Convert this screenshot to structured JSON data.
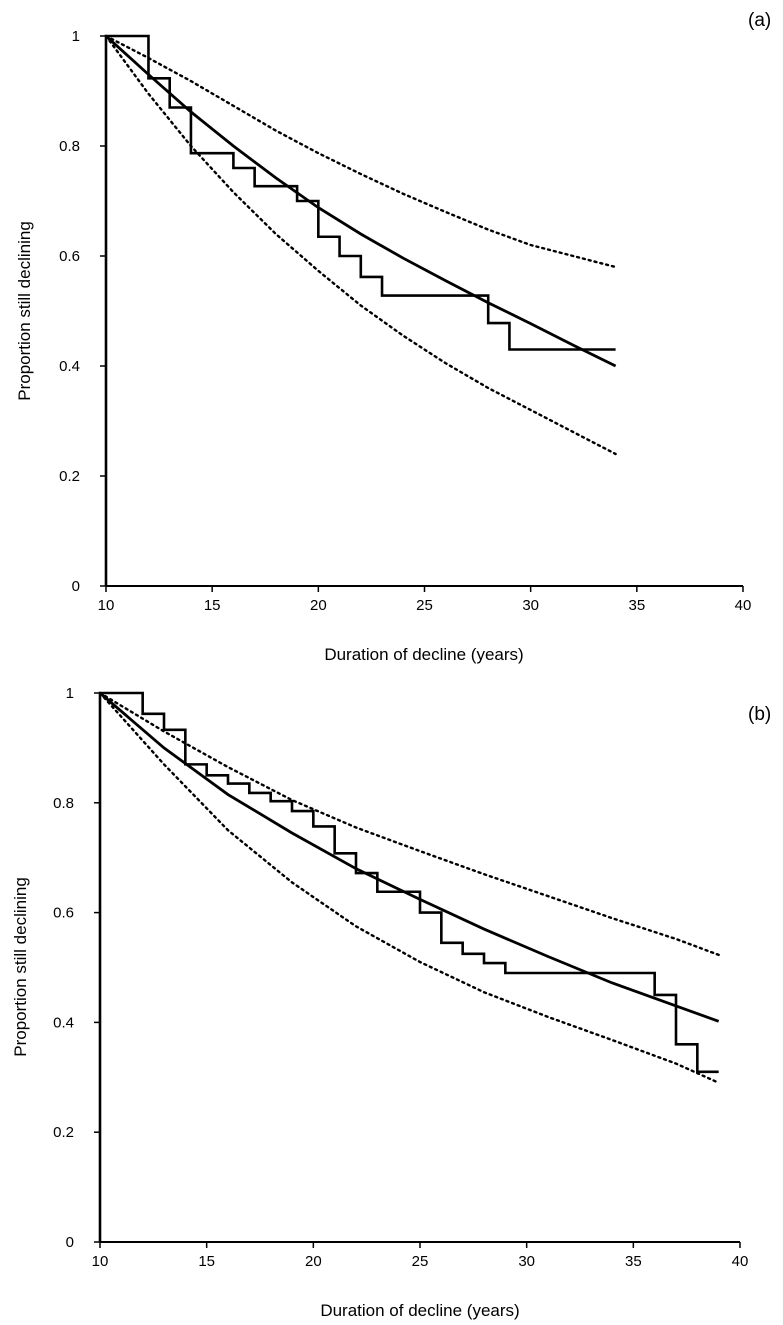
{
  "chart_data": [
    {
      "type": "line",
      "panel_label": "(a)",
      "xlabel": "Duration of decline (years)",
      "ylabel": "Proportion still declining",
      "xlim": [
        10,
        40
      ],
      "ylim": [
        0,
        1
      ],
      "xticks": [
        "10",
        "15",
        "20",
        "25",
        "30",
        "35",
        "40"
      ],
      "yticks": [
        "0",
        "0.2",
        "0.4",
        "0.6",
        "0.8",
        "1"
      ],
      "grid": false,
      "legend": "none",
      "series": [
        {
          "style": "step",
          "x": [
            10,
            12,
            13,
            14,
            16,
            17,
            19,
            20,
            21,
            22,
            23,
            28,
            29,
            34
          ],
          "y": [
            1.0,
            0.923,
            0.87,
            0.787,
            0.76,
            0.727,
            0.7,
            0.635,
            0.6,
            0.562,
            0.528,
            0.478,
            0.43,
            0.43
          ]
        },
        {
          "style": "solid",
          "x": [
            10,
            12,
            14,
            16,
            18,
            20,
            22,
            24,
            26,
            28,
            30,
            32,
            34
          ],
          "y": [
            1.0,
            0.93,
            0.862,
            0.8,
            0.742,
            0.688,
            0.64,
            0.596,
            0.555,
            0.515,
            0.477,
            0.438,
            0.4
          ]
        },
        {
          "style": "dotted",
          "x": [
            10,
            12,
            14,
            16,
            18,
            20,
            22,
            24,
            26,
            28,
            30,
            32,
            34
          ],
          "y": [
            1.0,
            0.96,
            0.918,
            0.873,
            0.828,
            0.787,
            0.749,
            0.713,
            0.68,
            0.648,
            0.62,
            0.6,
            0.58
          ]
        },
        {
          "style": "dotted",
          "x": [
            10,
            12,
            14,
            16,
            18,
            20,
            22,
            24,
            26,
            28,
            30,
            32,
            34
          ],
          "y": [
            1.0,
            0.895,
            0.8,
            0.716,
            0.64,
            0.573,
            0.51,
            0.455,
            0.405,
            0.36,
            0.32,
            0.28,
            0.24
          ]
        }
      ]
    },
    {
      "type": "line",
      "panel_label": "(b)",
      "xlabel": "Duration of decline (years)",
      "ylabel": "Proportion still declining",
      "xlim": [
        10,
        40
      ],
      "ylim": [
        0,
        1
      ],
      "xticks": [
        "10",
        "15",
        "20",
        "25",
        "30",
        "35",
        "40"
      ],
      "yticks": [
        "0",
        "0.2",
        "0.4",
        "0.6",
        "0.8",
        "1"
      ],
      "grid": false,
      "legend": "none",
      "series": [
        {
          "style": "step",
          "x": [
            10,
            12,
            13,
            14,
            15,
            16,
            17,
            18,
            19,
            20,
            21,
            22,
            23,
            25,
            26,
            27,
            28,
            29,
            36,
            37,
            38,
            39
          ],
          "y": [
            1.0,
            0.962,
            0.933,
            0.87,
            0.85,
            0.835,
            0.818,
            0.803,
            0.785,
            0.757,
            0.708,
            0.672,
            0.638,
            0.6,
            0.545,
            0.525,
            0.508,
            0.49,
            0.45,
            0.36,
            0.31,
            0.31
          ]
        },
        {
          "style": "solid",
          "x": [
            10,
            13,
            16,
            19,
            22,
            25,
            28,
            31,
            34,
            37,
            39
          ],
          "y": [
            1.0,
            0.9,
            0.815,
            0.745,
            0.68,
            0.624,
            0.57,
            0.52,
            0.472,
            0.43,
            0.402
          ]
        },
        {
          "style": "dotted",
          "x": [
            10,
            13,
            16,
            19,
            22,
            25,
            28,
            31,
            34,
            37,
            39
          ],
          "y": [
            1.0,
            0.93,
            0.865,
            0.805,
            0.755,
            0.712,
            0.67,
            0.63,
            0.59,
            0.552,
            0.523
          ]
        },
        {
          "style": "dotted",
          "x": [
            10,
            13,
            16,
            19,
            22,
            25,
            28,
            31,
            34,
            37,
            39
          ],
          "y": [
            1.0,
            0.87,
            0.75,
            0.655,
            0.575,
            0.51,
            0.455,
            0.41,
            0.368,
            0.325,
            0.29
          ]
        }
      ]
    }
  ]
}
